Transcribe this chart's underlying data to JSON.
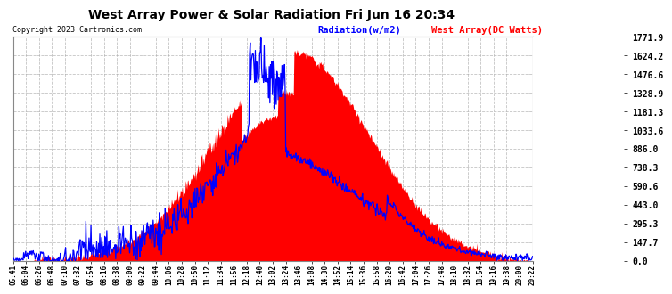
{
  "title": "West Array Power & Solar Radiation Fri Jun 16 20:34",
  "copyright": "Copyright 2023 Cartronics.com",
  "legend_radiation": "Radiation(w/m2)",
  "legend_west": "West Array(DC Watts)",
  "radiation_color": "blue",
  "west_color": "red",
  "background_color": "#ffffff",
  "plot_bg_color": "#ffffff",
  "grid_color": "#aaaaaa",
  "yticks": [
    0.0,
    147.7,
    295.3,
    443.0,
    590.6,
    738.3,
    886.0,
    1033.6,
    1181.3,
    1328.9,
    1476.6,
    1624.2,
    1771.9
  ],
  "ymax": 1771.9,
  "ymin": 0.0,
  "xtick_labels": [
    "05:41",
    "06:04",
    "06:26",
    "06:48",
    "07:10",
    "07:32",
    "07:54",
    "08:16",
    "08:38",
    "09:00",
    "09:22",
    "09:44",
    "10:06",
    "10:28",
    "10:50",
    "11:12",
    "11:34",
    "11:56",
    "12:18",
    "12:40",
    "13:02",
    "13:24",
    "13:46",
    "14:08",
    "14:30",
    "14:52",
    "15:14",
    "15:36",
    "15:58",
    "16:20",
    "16:42",
    "17:04",
    "17:26",
    "17:48",
    "18:10",
    "18:32",
    "18:54",
    "19:16",
    "19:38",
    "20:00",
    "20:22"
  ]
}
